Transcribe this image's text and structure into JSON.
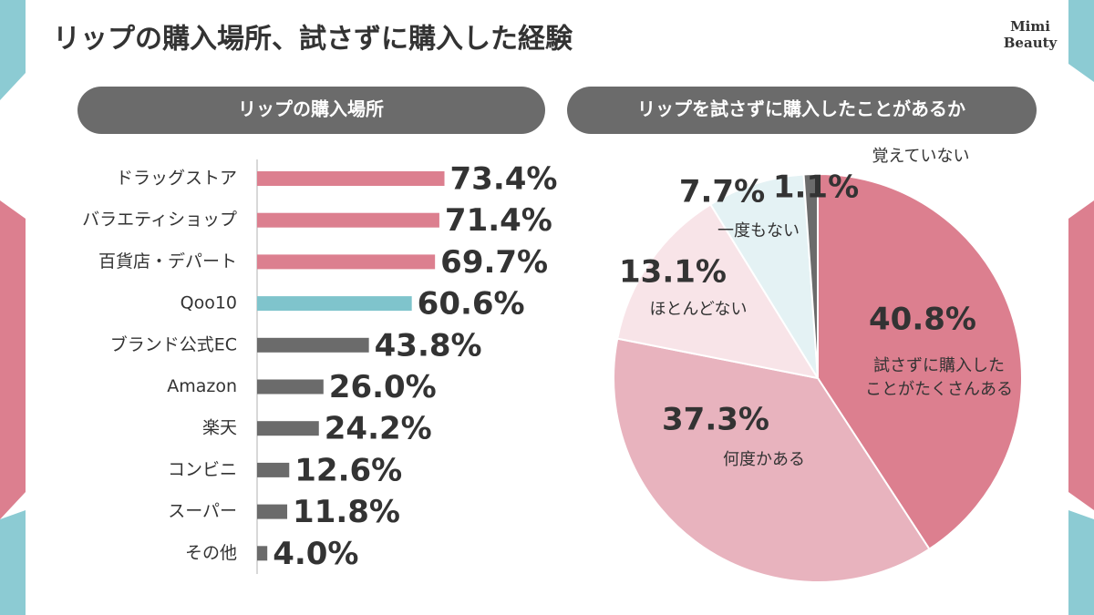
{
  "title": "リップの購入場所、試さずに購入した経験",
  "logo": [
    "Mimi",
    "Beauty"
  ],
  "chart_data": [
    {
      "type": "bar",
      "orientation": "horizontal",
      "title": "リップの購入場所",
      "categories": [
        "ドラッグストア",
        "バラエティショップ",
        "百貨店・デパート",
        "Qoo10",
        "ブランド公式EC",
        "Amazon",
        "楽天",
        "コンビニ",
        "スーパー",
        "その他"
      ],
      "values": [
        73.4,
        71.4,
        69.7,
        60.6,
        43.8,
        26.0,
        24.2,
        12.6,
        11.8,
        4.0
      ],
      "value_labels": [
        "73.4%",
        "71.4%",
        "69.7%",
        "60.6%",
        "43.8%",
        "26.0%",
        "24.2%",
        "12.6%",
        "11.8%",
        "4.0%"
      ],
      "colors": [
        "#dc7f8f",
        "#dc7f8f",
        "#dc7f8f",
        "#7fc4cc",
        "#6b6b6b",
        "#6b6b6b",
        "#6b6b6b",
        "#6b6b6b",
        "#6b6b6b",
        "#6b6b6b"
      ],
      "xlim": [
        0,
        100
      ]
    },
    {
      "type": "pie",
      "title": "リップを試さずに購入したことがあるか",
      "labels": [
        [
          "試さずに購入した",
          "ことがたくさんある"
        ],
        [
          "何度かある"
        ],
        [
          "ほとんどない"
        ],
        [
          "一度もない"
        ],
        [
          "覚えていない"
        ]
      ],
      "values": [
        40.8,
        37.3,
        13.1,
        7.7,
        1.1
      ],
      "value_labels": [
        "40.8%",
        "37.3%",
        "13.1%",
        "7.7%",
        "1.1%"
      ],
      "colors": [
        "#dc7f8f",
        "#e8b3be",
        "#f8e4e8",
        "#e4f2f4",
        "#6b6b6b"
      ]
    }
  ]
}
